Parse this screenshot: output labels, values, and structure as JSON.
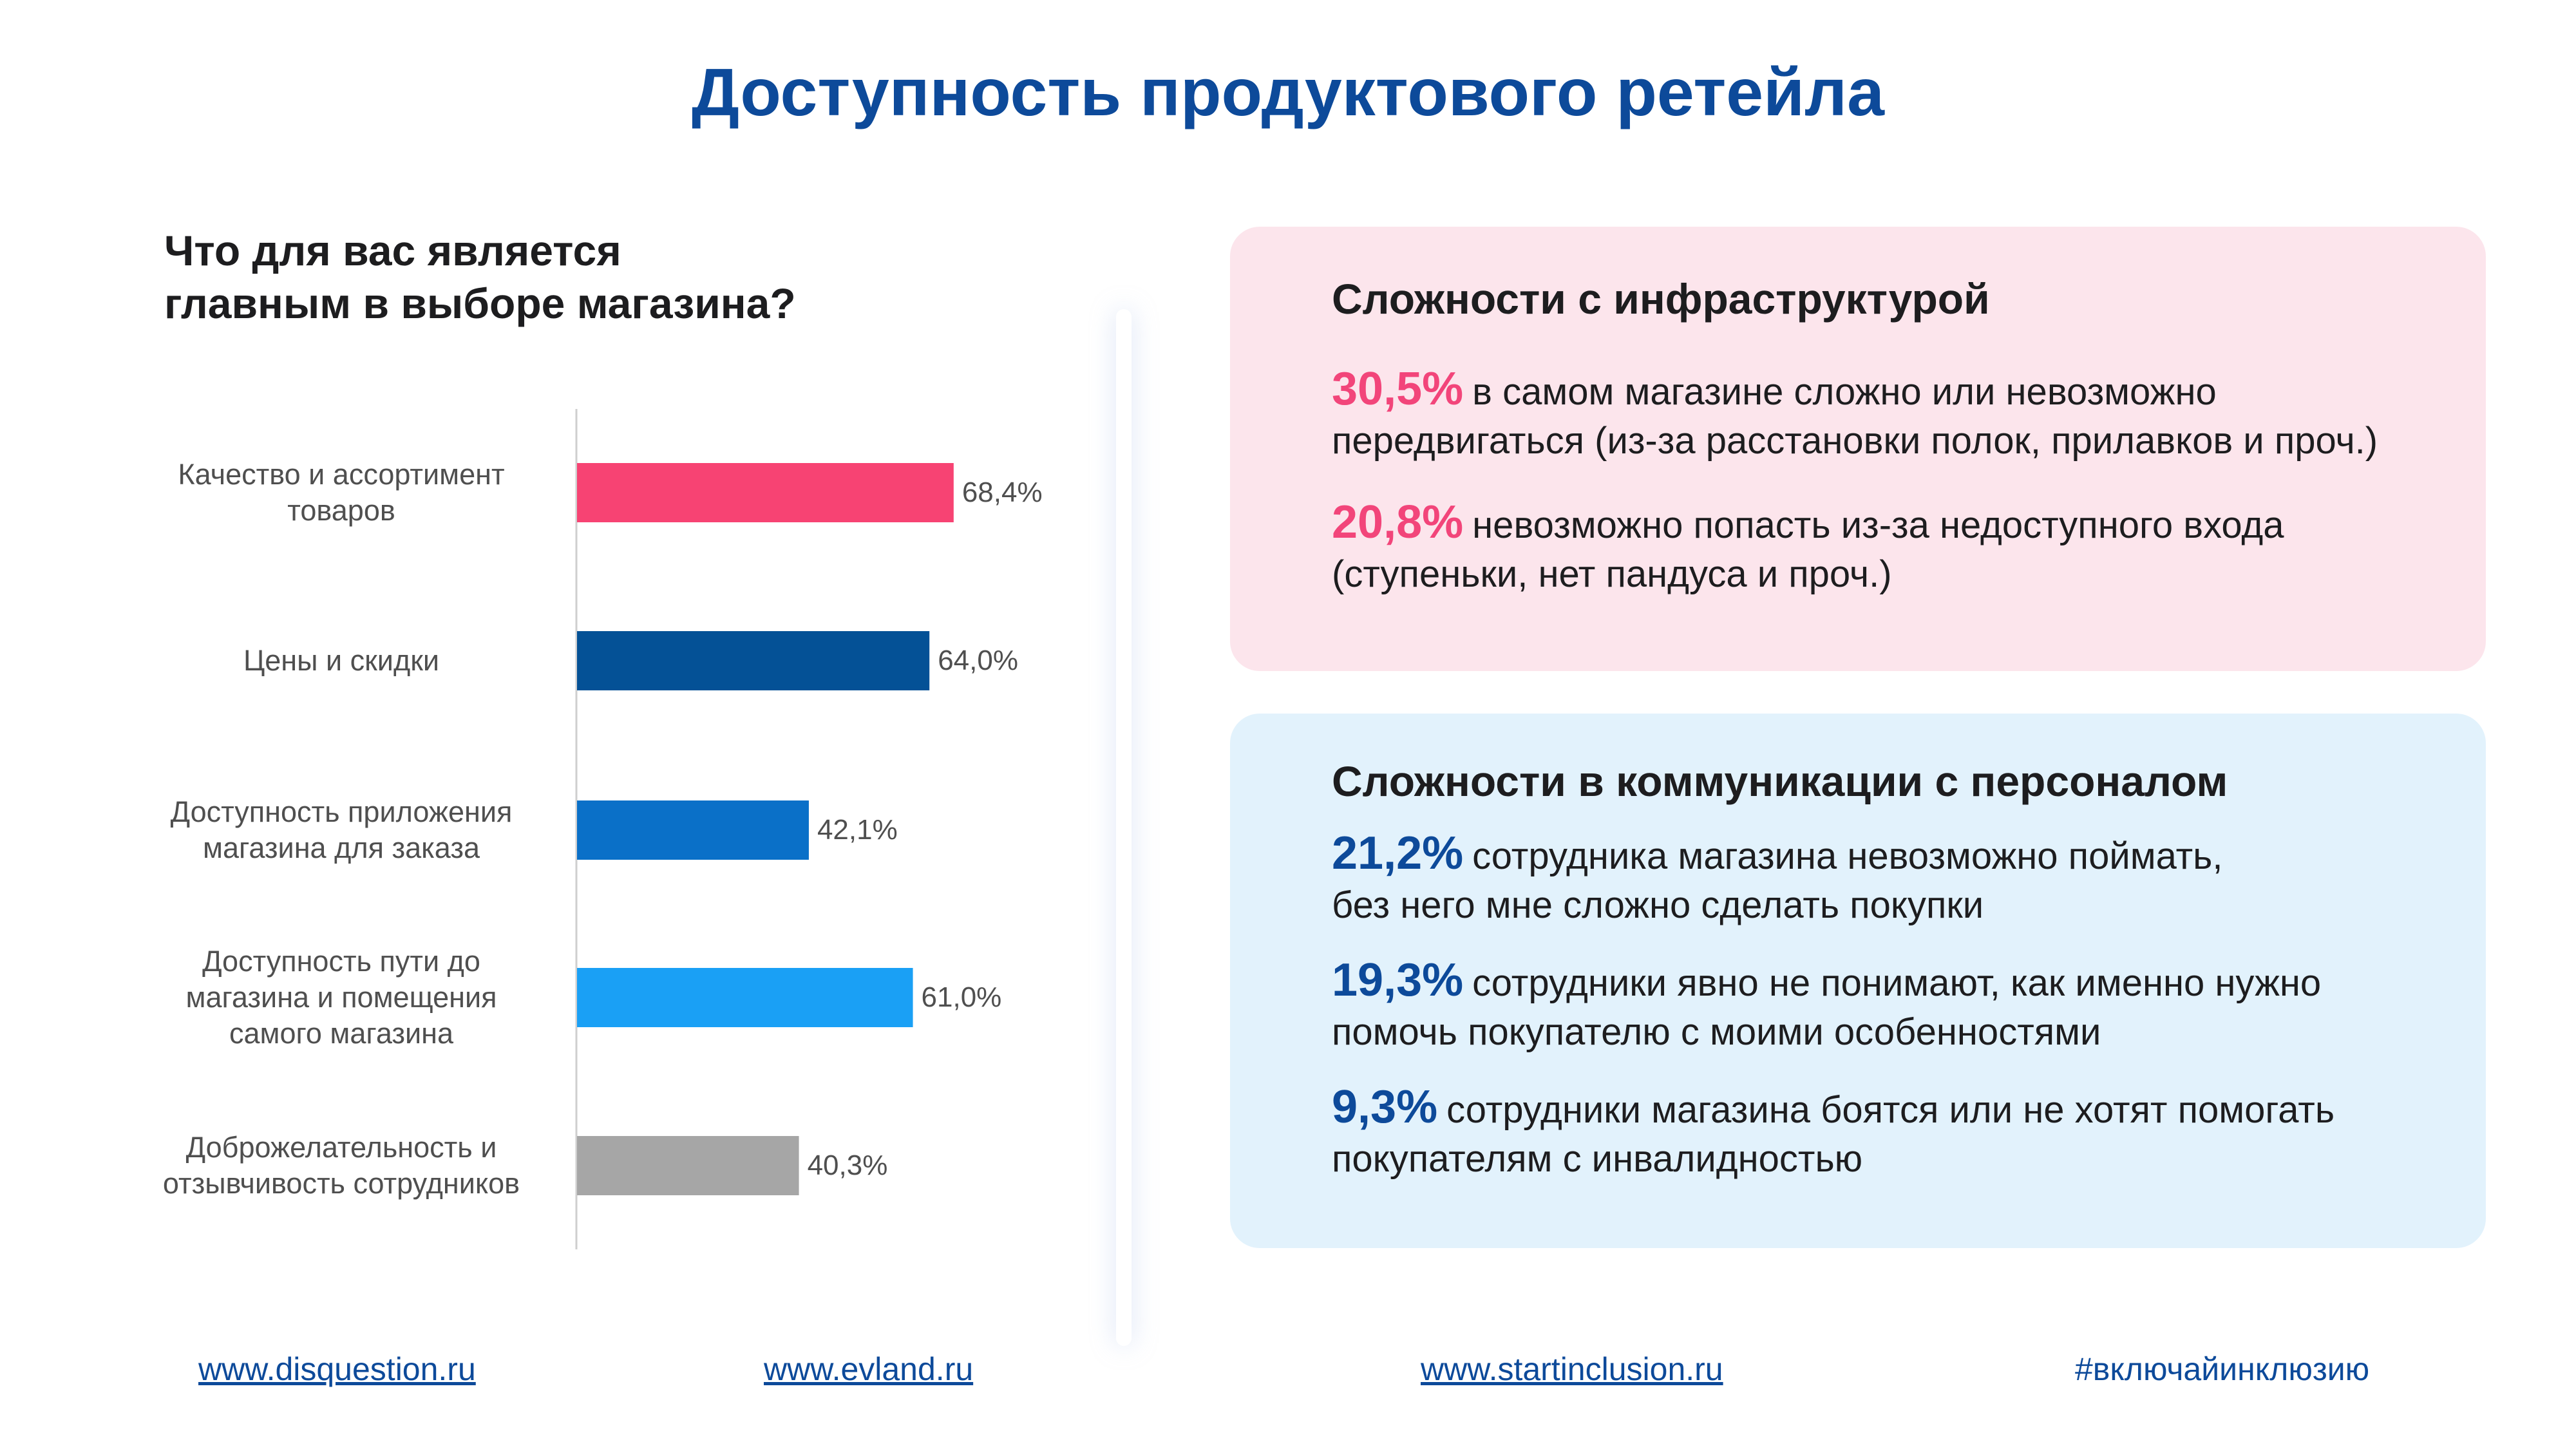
{
  "title": "Доступность продуктового ретейла",
  "question": [
    "Что для вас является",
    "главным в выборе магазина?"
  ],
  "chart_data": {
    "type": "bar",
    "orientation": "horizontal",
    "categories": [
      [
        "Качество и ассортимент",
        "товаров"
      ],
      [
        "Цены и скидки"
      ],
      [
        "Доступность приложения",
        "магазина для заказа"
      ],
      [
        "Доступность пути до",
        "магазина и помещения",
        "самого магазина"
      ],
      [
        "Доброжелательность и",
        "отзывчивость сотрудников"
      ]
    ],
    "values": [
      68.4,
      64.0,
      42.1,
      61.0,
      40.3
    ],
    "value_labels": [
      "68,4%",
      "64,0%",
      "42,1%",
      "61,0%",
      "40,3%"
    ],
    "colors": [
      "#f74373",
      "#045196",
      "#0a70c8",
      "#1aa0f5",
      "#a6a6a6"
    ],
    "xlim": [
      0,
      100
    ],
    "grid": false
  },
  "infrastructure": {
    "title": "Сложности с инфраструктурой",
    "accent": "#f2457a",
    "items": [
      {
        "pct": "30,5%",
        "lines": [
          "в самом магазине сложно или невозможно",
          "передвигаться (из-за расстановки полок, прилавков и проч.)"
        ]
      },
      {
        "pct": "20,8%",
        "lines": [
          "невозможно попасть из-за недоступного входа",
          "(ступеньки, нет пандуса и проч.)"
        ]
      }
    ]
  },
  "communication": {
    "title": "Сложности в коммуникации с персоналом",
    "accent": "#0d4a9a",
    "items": [
      {
        "pct": "21,2%",
        "lines": [
          "сотрудника магазина невозможно поймать,",
          "без него мне сложно сделать покупки"
        ]
      },
      {
        "pct": "19,3%",
        "lines": [
          "сотрудники явно не понимают, как именно нужно",
          "помочь покупателю с моими особенностями"
        ]
      },
      {
        "pct": "9,3%",
        "lines": [
          "сотрудники магазина боятся или не хотят помогать",
          "покупателям с инвалидностью"
        ]
      }
    ]
  },
  "footer": {
    "links": [
      "www.disquestion.ru",
      "www.evland.ru",
      "www.startinclusion.ru"
    ],
    "hashtag": "#включайинклюзию"
  }
}
